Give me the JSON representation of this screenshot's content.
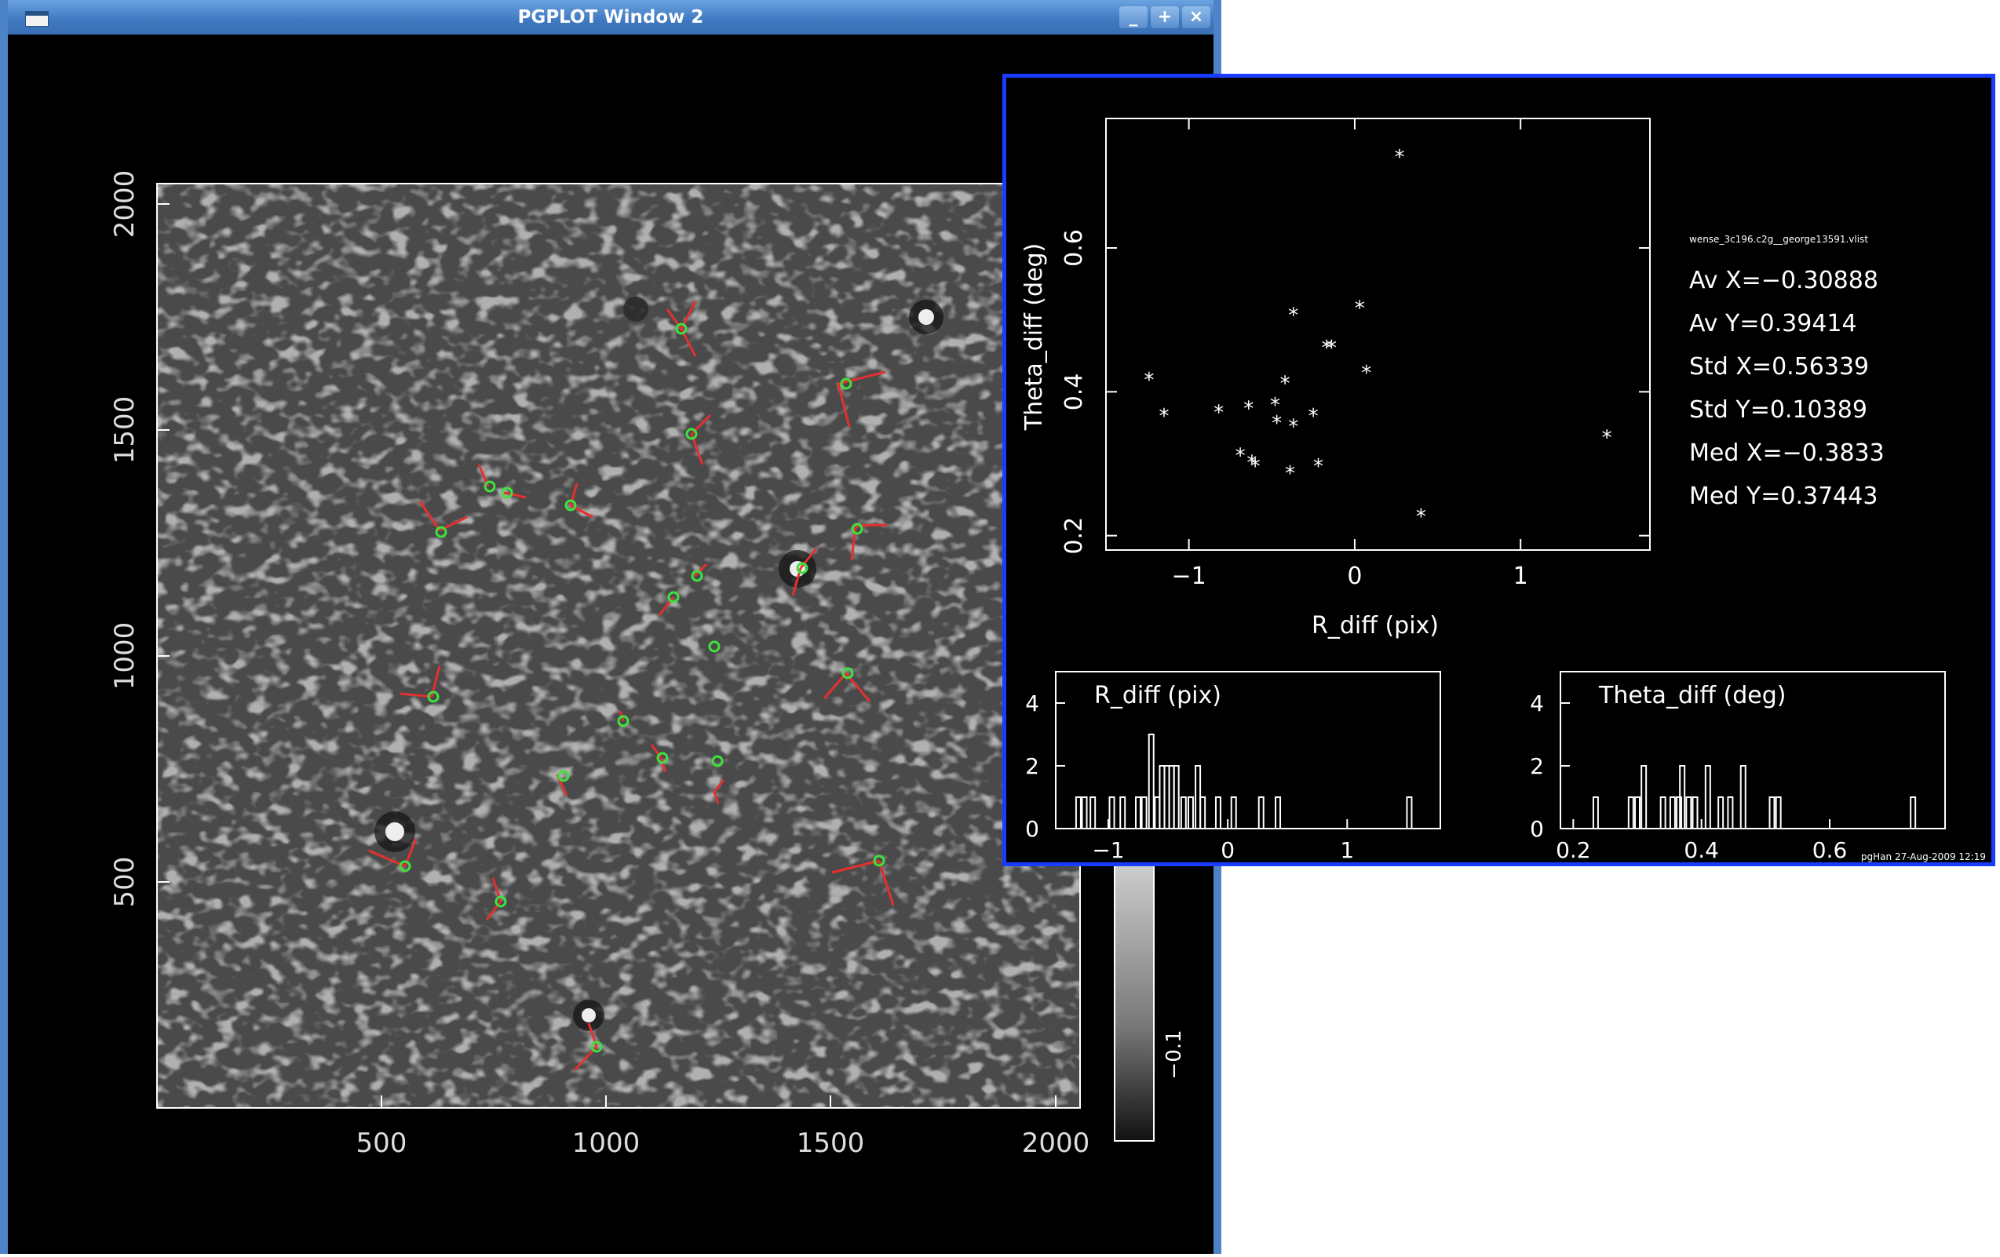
{
  "window_main": {
    "title": "PGPLOT Window 2",
    "buttons": {
      "minimize": "_",
      "maximize": "+",
      "close": "×"
    }
  },
  "image_panel": {
    "x_ticks": [
      "500",
      "1000",
      "1500",
      "2000"
    ],
    "y_ticks": [
      "500",
      "1000",
      "1500",
      "2000"
    ],
    "colorbar_label": "−0.1",
    "marker_color": "#3fe13f",
    "vector_color": "#e53030"
  },
  "stats_window": {
    "filename": "wense_3c196.c2g__george13591.vlist",
    "stats": [
      "Av X=−0.30888",
      "Av Y=0.39414",
      "Std X=0.56339",
      "Std Y=0.10389",
      "Med X=−0.3833",
      "Med Y=0.37443"
    ],
    "footer": "pgHan 27-Aug-2009 12:19"
  },
  "chart_data": [
    {
      "type": "scatter",
      "xlabel": "R_diff (pix)",
      "ylabel": "Theta_diff (deg)",
      "xlim": [
        -1.5,
        1.78
      ],
      "ylim": [
        0.18,
        0.78
      ],
      "x_ticks": [
        "−1",
        "0",
        "1"
      ],
      "y_ticks": [
        "0.2",
        "0.4",
        "0.6"
      ],
      "points": [
        [
          0.27,
          0.73
        ],
        [
          -0.37,
          0.51
        ],
        [
          0.03,
          0.52
        ],
        [
          -0.17,
          0.465
        ],
        [
          -0.14,
          0.465
        ],
        [
          0.07,
          0.43
        ],
        [
          -1.24,
          0.42
        ],
        [
          -0.42,
          0.415
        ],
        [
          -1.15,
          0.37
        ],
        [
          -0.82,
          0.375
        ],
        [
          -0.64,
          0.38
        ],
        [
          -0.48,
          0.385
        ],
        [
          -0.47,
          0.36
        ],
        [
          -0.37,
          0.355
        ],
        [
          -0.25,
          0.37
        ],
        [
          -0.69,
          0.315
        ],
        [
          -0.62,
          0.305
        ],
        [
          -0.6,
          0.3
        ],
        [
          -0.22,
          0.3
        ],
        [
          -0.39,
          0.29
        ],
        [
          1.52,
          0.34
        ],
        [
          0.4,
          0.23
        ]
      ]
    },
    {
      "type": "bar",
      "title": "R_diff (pix)",
      "xlim": [
        -1.44,
        1.78
      ],
      "ylim": [
        0,
        5
      ],
      "x_ticks": [
        "−1",
        "0",
        "1"
      ],
      "y_ticks": [
        "0",
        "2",
        "4"
      ],
      "bins": [
        [
          -1.25,
          1
        ],
        [
          -1.2,
          1
        ],
        [
          -1.13,
          1
        ],
        [
          -0.97,
          1
        ],
        [
          -0.88,
          1
        ],
        [
          -0.75,
          1
        ],
        [
          -0.7,
          1
        ],
        [
          -0.64,
          3
        ],
        [
          -0.59,
          1
        ],
        [
          -0.55,
          2
        ],
        [
          -0.51,
          2
        ],
        [
          -0.47,
          2
        ],
        [
          -0.43,
          2
        ],
        [
          -0.37,
          1
        ],
        [
          -0.31,
          1
        ],
        [
          -0.25,
          2
        ],
        [
          -0.21,
          1
        ],
        [
          -0.08,
          1
        ],
        [
          0.05,
          1
        ],
        [
          0.28,
          1
        ],
        [
          0.42,
          1
        ],
        [
          1.52,
          1
        ]
      ]
    },
    {
      "type": "bar",
      "title": "Theta_diff (deg)",
      "xlim": [
        0.18,
        0.78
      ],
      "ylim": [
        0,
        5
      ],
      "x_ticks": [
        "0.2",
        "0.4",
        "0.6"
      ],
      "y_ticks": [
        "0",
        "2",
        "4"
      ],
      "bins": [
        [
          0.235,
          1
        ],
        [
          0.29,
          1
        ],
        [
          0.3,
          1
        ],
        [
          0.31,
          2
        ],
        [
          0.34,
          1
        ],
        [
          0.355,
          1
        ],
        [
          0.365,
          1
        ],
        [
          0.37,
          2
        ],
        [
          0.38,
          1
        ],
        [
          0.39,
          1
        ],
        [
          0.41,
          2
        ],
        [
          0.43,
          1
        ],
        [
          0.445,
          1
        ],
        [
          0.465,
          2
        ],
        [
          0.51,
          1
        ],
        [
          0.52,
          1
        ],
        [
          0.73,
          1
        ]
      ]
    }
  ]
}
